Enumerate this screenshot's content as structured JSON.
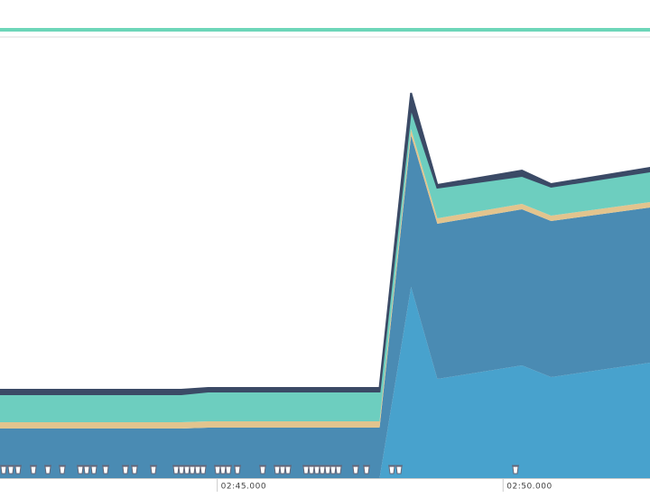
{
  "chart_data": {
    "type": "stacked-area",
    "x": [
      161.2,
      164.37,
      164.84,
      167.84,
      168.39,
      168.85,
      170.33,
      170.84,
      172.57
    ],
    "xlim": [
      161.2,
      172.57
    ],
    "xticks": [
      {
        "value": 165,
        "label": "02:45.000"
      },
      {
        "value": 170,
        "label": "02:50.000"
      }
    ],
    "ylim": [
      0,
      490
    ],
    "series": [
      {
        "color": "#48a2cd",
        "values": [
          0,
          0,
          0,
          0,
          212,
          110,
          125,
          112,
          128
        ]
      },
      {
        "color": "#4a8bb3",
        "values": [
          55,
          55,
          56,
          56,
          168,
          172,
          173,
          173,
          172
        ]
      },
      {
        "color": "#e2c48e",
        "values": [
          7,
          7,
          7,
          7,
          7,
          6,
          6,
          6,
          6
        ]
      },
      {
        "color": "#6dcebf",
        "values": [
          31,
          31,
          33,
          33,
          23,
          34,
          31,
          32,
          34
        ]
      },
      {
        "color": "#3b4a66",
        "values": [
          5,
          5,
          4,
          4,
          17,
          3,
          6,
          3,
          4
        ]
      }
    ]
  }
}
